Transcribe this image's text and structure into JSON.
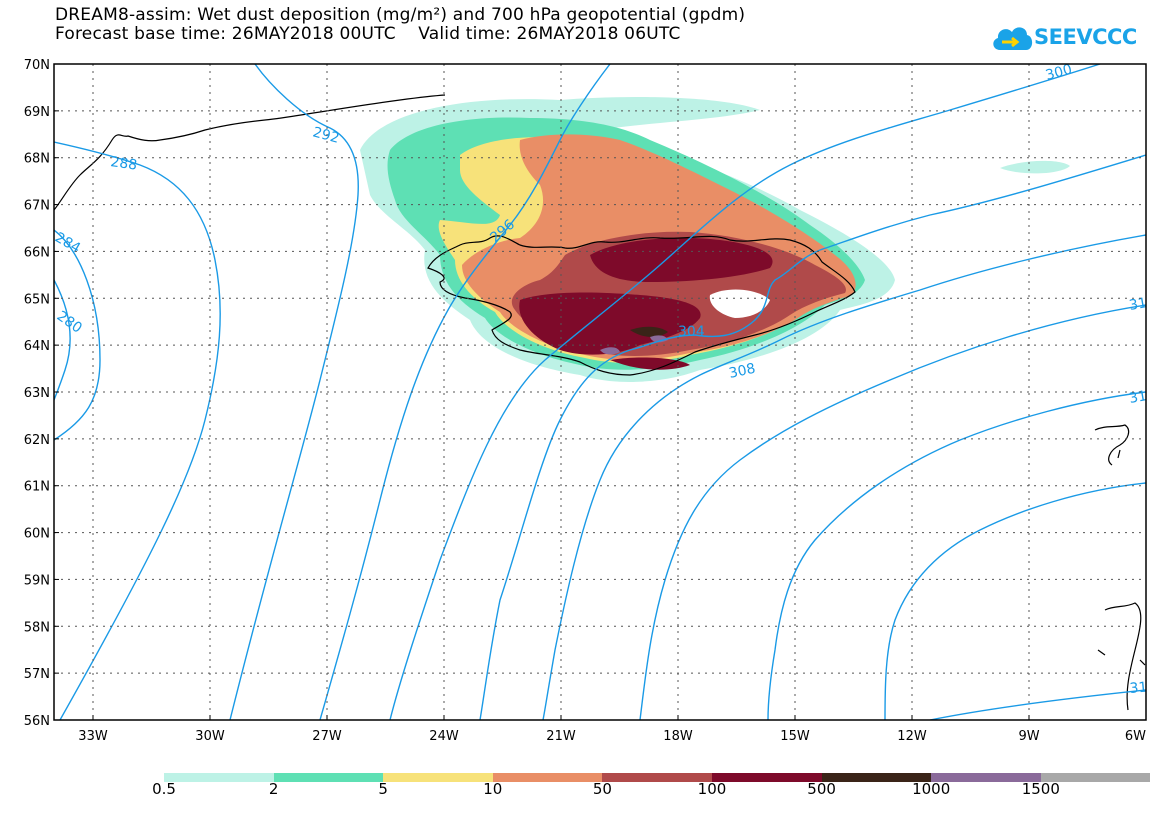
{
  "header": {
    "title_line1": "DREAM8-assim: Wet dust deposition (mg/m²) and 700 hPa geopotential (gpdm)",
    "title_line2": "Forecast base time: 26MAY2018 00UTC    Valid time: 26MAY2018 06UTC"
  },
  "logo": {
    "text": "SEEVCCC",
    "icon": "cloud-icon"
  },
  "map": {
    "lat_labels": [
      "70N",
      "69N",
      "68N",
      "67N",
      "66N",
      "65N",
      "64N",
      "63N",
      "62N",
      "61N",
      "60N",
      "59N",
      "58N",
      "57N",
      "56N"
    ],
    "lon_labels": [
      "33W",
      "30W",
      "27W",
      "24W",
      "21W",
      "18W",
      "15W",
      "12W",
      "9W",
      "6W"
    ],
    "contour_labels": [
      "288",
      "292",
      "296",
      "300",
      "304",
      "308",
      "284",
      "280",
      "31",
      "31",
      "31"
    ],
    "colors": {
      "contour": "#1a9ae6",
      "coast": "#000000"
    }
  },
  "legend": {
    "labels": [
      "0.5",
      "2",
      "5",
      "10",
      "50",
      "100",
      "500",
      "1000",
      "1500"
    ],
    "colors": [
      "#bdf2e6",
      "#5ee0b4",
      "#f7e27a",
      "#e98e66",
      "#b04a4a",
      "#7e0a2a",
      "#3a2418",
      "#8a6a9a",
      "#a8a8a8"
    ]
  }
}
